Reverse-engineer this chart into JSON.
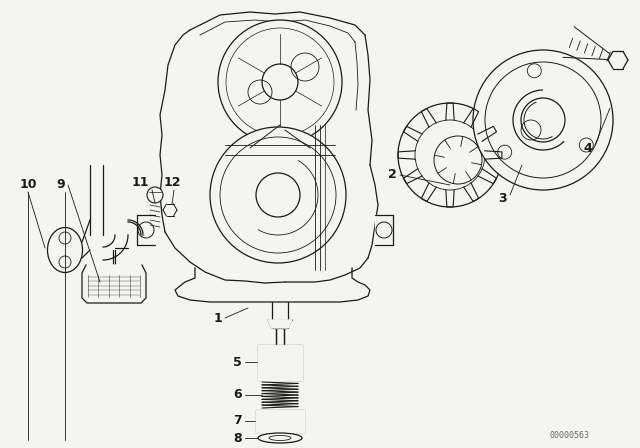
{
  "bg_color": "#f5f5f0",
  "line_color": "#1a1a1a",
  "watermark": "00000563",
  "figsize": [
    6.4,
    4.48
  ],
  "dpi": 100
}
